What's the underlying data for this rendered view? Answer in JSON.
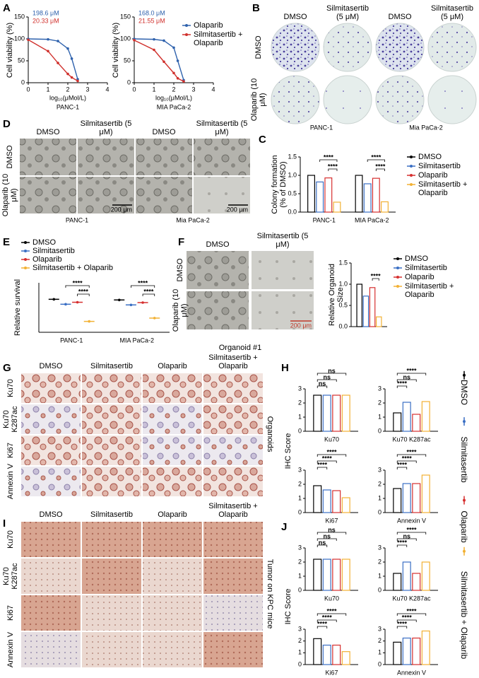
{
  "figure": {
    "panel_labels": [
      "A",
      "B",
      "C",
      "D",
      "E",
      "F",
      "G",
      "H",
      "I",
      "J"
    ],
    "B": {
      "columns": [
        "DMSO",
        "Silmitasertib (5 μM)",
        "DMSO",
        "Silmitasertib (5 μM)"
      ],
      "rows": [
        "DMSO",
        "Olaparib (10 μM)"
      ],
      "groups": [
        "PANC-1",
        "Mia PaCa-2"
      ]
    },
    "D": {
      "columns": [
        "DMSO",
        "Silmitasertib (5 μM)",
        "DMSO",
        "Silmitasertib (5 μM)"
      ],
      "rows": [
        "DMSO",
        "Olaparib (10 μM)"
      ],
      "groups": [
        "PANC-1",
        "Mia PaCa-2"
      ],
      "scale_bars": [
        "200 μm",
        "200 μm"
      ]
    },
    "F": {
      "columns": [
        "DMSO",
        "Silmitasertib (5 μM)"
      ],
      "rows": [
        "DMSO",
        "Olaparib (10 μM)"
      ],
      "scale_bar": "200 μm"
    },
    "organoid_title": "Organoid #1",
    "G": {
      "columns": [
        "DMSO",
        "Silmitasertib",
        "Olaparib",
        "Silmitasertib + Olaparib"
      ],
      "rows": [
        "Ku70",
        "Ku70 K287ac",
        "Ki67",
        "Annexin V"
      ],
      "side_label": "Organoids"
    },
    "I": {
      "columns": [
        "DMSO",
        "Silmitasertib",
        "Olaparib",
        "Silmitasertib + Olaparib"
      ],
      "rows": [
        "Ku70",
        "Ku70 K287ac",
        "Ki67",
        "Annexin V"
      ],
      "side_label": "Tumor on KPC mice"
    }
  },
  "chart_data": [
    {
      "type": "line",
      "title": "PANC-1",
      "xlabel": "log₁₀(μMol/L)",
      "ylabel": "Cell viability (%)",
      "x": [
        0,
        1,
        1.5,
        2,
        2.2,
        2.5
      ],
      "xlim": [
        0,
        4
      ],
      "xticks": [
        0,
        1,
        2,
        3,
        4
      ],
      "ylim": [
        0,
        150
      ],
      "yticks": [
        0,
        50,
        100,
        150
      ],
      "series": [
        {
          "color": "#2f62ad",
          "annotation": "198.6 μM",
          "values": [
            100,
            99,
            95,
            78,
            55,
            8
          ]
        },
        {
          "color": "#d0312d",
          "annotation": "20.33 μM",
          "values": [
            98,
            72,
            45,
            20,
            12,
            4
          ]
        }
      ]
    },
    {
      "type": "line",
      "title": "MIA PaCa-2",
      "xlabel": "log₁₀(μMol/L)",
      "ylabel": "Cell viability (%)",
      "x": [
        0,
        1,
        1.5,
        2,
        2.2,
        2.5
      ],
      "xlim": [
        0,
        4
      ],
      "xticks": [
        0,
        1,
        2,
        3,
        4
      ],
      "ylim": [
        0,
        150
      ],
      "yticks": [
        0,
        50,
        100,
        150
      ],
      "series": [
        {
          "name": "Olaparib",
          "color": "#2f62ad",
          "annotation": "168.0 μM",
          "values": [
            100,
            99,
            96,
            80,
            50,
            6
          ]
        },
        {
          "name": "Silmitasertib + Olaparib",
          "color": "#d0312d",
          "annotation": "21.55 μM",
          "values": [
            97,
            75,
            48,
            22,
            10,
            3
          ]
        }
      ]
    },
    {
      "type": "bar",
      "ylabel": "Colony formation (% of DMSO)",
      "categories": [
        "PANC-1",
        "MIA PaCa-2"
      ],
      "ylim": [
        0,
        1.5
      ],
      "yticks": [
        {
          "value": 0,
          "label": "0.0"
        },
        0.5,
        {
          "value": 1,
          "label": "1.0"
        },
        1.5
      ],
      "series": [
        {
          "name": "DMSO",
          "color": "#000000",
          "values": [
            1.0,
            1.0
          ]
        },
        {
          "name": "Silmitasertib",
          "color": "#3a6fc4",
          "values": [
            0.82,
            0.77
          ]
        },
        {
          "name": "Olaparib",
          "color": "#d62f2f",
          "values": [
            0.93,
            0.92
          ]
        },
        {
          "name": "Silmitasertib + Olaparib",
          "color": "#f2b134",
          "values": [
            0.27,
            0.28
          ]
        }
      ],
      "significance": [
        [
          "****",
          "****"
        ],
        [
          "****",
          "****"
        ]
      ]
    },
    {
      "type": "dot",
      "ylabel": "Relative survival",
      "categories": [
        "PANC-1",
        "MIA PaCa-2"
      ],
      "ylim": [
        0,
        1.5
      ],
      "series": [
        {
          "name": "DMSO",
          "color": "#000000",
          "values": [
            1.0,
            0.98
          ]
        },
        {
          "name": "Silmitasertib",
          "color": "#3a6fc4",
          "values": [
            0.85,
            0.83
          ]
        },
        {
          "name": "Olaparib",
          "color": "#d62f2f",
          "values": [
            0.91,
            0.9
          ]
        },
        {
          "name": "Silmitasertib + Olaparib",
          "color": "#f2b134",
          "values": [
            0.33,
            0.43
          ]
        }
      ],
      "significance": [
        [
          "****",
          "****"
        ],
        [
          "****",
          "****"
        ]
      ]
    },
    {
      "type": "bar",
      "ylabel": "Relative Organoid Size",
      "ylim": [
        0,
        1.5
      ],
      "yticks": [
        {
          "value": 0,
          "label": "0.0"
        },
        0.5,
        {
          "value": 1,
          "label": "1.0"
        },
        1.5
      ],
      "series": [
        {
          "name": "DMSO",
          "color": "#000000",
          "values": [
            1.0
          ]
        },
        {
          "name": "Silmitasertib",
          "color": "#3a6fc4",
          "values": [
            0.72
          ]
        },
        {
          "name": "Olaparib",
          "color": "#d62f2f",
          "values": [
            0.92
          ]
        },
        {
          "name": "Silmitasertib + Olaparib",
          "color": "#f2b134",
          "values": [
            0.23
          ]
        }
      ],
      "significance": [
        [
          "****"
        ]
      ]
    },
    {
      "type": "bar",
      "ylabel": "IHC Score",
      "categories": [
        "Ku70",
        "Ku70 K287ac",
        "Ki67",
        "Annexin V"
      ],
      "ylim": [
        0,
        3
      ],
      "yticks": [
        0,
        1,
        2,
        3
      ],
      "series": [
        {
          "name": "DMSO",
          "color": "#000000",
          "values": [
            2.55,
            1.3,
            1.9,
            1.7
          ]
        },
        {
          "name": "Silmitasertib",
          "color": "#3a6fc4",
          "values": [
            2.55,
            2.05,
            1.6,
            2.05
          ]
        },
        {
          "name": "Olaparib",
          "color": "#d62f2f",
          "values": [
            2.55,
            1.2,
            1.55,
            2.05
          ]
        },
        {
          "name": "Silmitasertib + Olaparib",
          "color": "#f2b134",
          "values": [
            2.55,
            2.1,
            1.05,
            2.65
          ]
        }
      ],
      "significance": [
        [
          "ns",
          "ns",
          "ns"
        ],
        [
          "****",
          "ns",
          "****"
        ],
        [
          "****",
          "****",
          "****"
        ],
        [
          "****",
          "****",
          "****"
        ]
      ]
    },
    {
      "type": "bar",
      "ylabel": "IHC Score",
      "categories": [
        "Ku70",
        "Ku70 K287ac",
        "Ki67",
        "Annexin V"
      ],
      "ylim": [
        0,
        3
      ],
      "yticks": [
        0,
        1,
        2,
        3
      ],
      "series": [
        {
          "color": "#000000",
          "values": [
            2.2,
            1.2,
            2.2,
            1.9
          ]
        },
        {
          "color": "#3a6fc4",
          "values": [
            2.2,
            2.0,
            1.65,
            2.25
          ]
        },
        {
          "color": "#d62f2f",
          "values": [
            2.2,
            1.2,
            1.65,
            2.25
          ]
        },
        {
          "color": "#f2b134",
          "values": [
            2.2,
            2.0,
            1.1,
            2.85
          ]
        }
      ],
      "significance": [
        [
          "ns",
          "ns",
          "ns"
        ],
        [
          "****",
          "ns",
          "****"
        ],
        [
          "****",
          "****",
          "****"
        ],
        [
          "****",
          "****",
          "****"
        ]
      ]
    }
  ]
}
